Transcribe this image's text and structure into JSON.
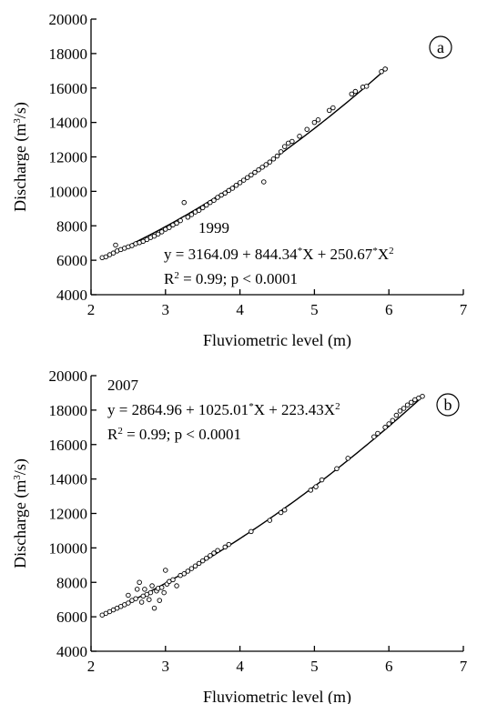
{
  "chart_data": [
    {
      "type": "scatter",
      "panel_label": "a",
      "xlabel": "Fluviometric level (m)",
      "ylabel_main": "Discharge (m",
      "ylabel_sup": "3",
      "ylabel_end": "/s)",
      "xlim": [
        2,
        7
      ],
      "ylim": [
        4000,
        20000
      ],
      "x_ticks": [
        2,
        3,
        4,
        5,
        6,
        7
      ],
      "y_ticks": [
        4000,
        6000,
        8000,
        10000,
        12000,
        14000,
        16000,
        18000,
        20000
      ],
      "year": "1999",
      "eq_main": "y = 3164.09 + 844.34",
      "eq_sup1": "*",
      "eq_mid": "X + 250.67",
      "eq_sup2": "*",
      "eq_end": "X",
      "eq_sup3": "2",
      "r2_main": "R",
      "r2_sup": "2",
      "r2_end": " = 0.99; p < 0.0001",
      "fit": {
        "intercept": 3164.09,
        "b1": 844.34,
        "b2": 250.67,
        "x_range": [
          2.15,
          5.98
        ]
      },
      "points": [
        [
          2.15,
          6150
        ],
        [
          2.2,
          6200
        ],
        [
          2.25,
          6320
        ],
        [
          2.3,
          6420
        ],
        [
          2.33,
          6880
        ],
        [
          2.35,
          6540
        ],
        [
          2.4,
          6620
        ],
        [
          2.45,
          6700
        ],
        [
          2.5,
          6780
        ],
        [
          2.55,
          6850
        ],
        [
          2.6,
          6960
        ],
        [
          2.65,
          7020
        ],
        [
          2.7,
          7100
        ],
        [
          2.75,
          7200
        ],
        [
          2.8,
          7320
        ],
        [
          2.85,
          7400
        ],
        [
          2.9,
          7520
        ],
        [
          2.95,
          7650
        ],
        [
          3.0,
          7800
        ],
        [
          3.05,
          7900
        ],
        [
          3.1,
          8050
        ],
        [
          3.15,
          8150
        ],
        [
          3.2,
          8300
        ],
        [
          3.25,
          9350
        ],
        [
          3.3,
          8500
        ],
        [
          3.35,
          8650
        ],
        [
          3.4,
          8800
        ],
        [
          3.45,
          8900
        ],
        [
          3.5,
          9050
        ],
        [
          3.55,
          9200
        ],
        [
          3.6,
          9350
        ],
        [
          3.65,
          9480
        ],
        [
          3.7,
          9650
        ],
        [
          3.75,
          9780
        ],
        [
          3.8,
          9900
        ],
        [
          3.85,
          10050
        ],
        [
          3.9,
          10180
        ],
        [
          3.95,
          10350
        ],
        [
          4.0,
          10500
        ],
        [
          4.05,
          10650
        ],
        [
          4.1,
          10800
        ],
        [
          4.15,
          10950
        ],
        [
          4.2,
          11100
        ],
        [
          4.25,
          11250
        ],
        [
          4.3,
          11400
        ],
        [
          4.32,
          10550
        ],
        [
          4.35,
          11550
        ],
        [
          4.4,
          11700
        ],
        [
          4.45,
          11880
        ],
        [
          4.5,
          12050
        ],
        [
          4.55,
          12300
        ],
        [
          4.6,
          12600
        ],
        [
          4.65,
          12800
        ],
        [
          4.7,
          12900
        ],
        [
          4.8,
          13200
        ],
        [
          4.9,
          13600
        ],
        [
          5.0,
          14000
        ],
        [
          5.05,
          14150
        ],
        [
          5.2,
          14700
        ],
        [
          5.25,
          14850
        ],
        [
          5.5,
          15650
        ],
        [
          5.55,
          15800
        ],
        [
          5.65,
          16050
        ],
        [
          5.7,
          16100
        ],
        [
          5.9,
          16950
        ],
        [
          5.95,
          17100
        ]
      ]
    },
    {
      "type": "scatter",
      "panel_label": "b",
      "xlabel": "Fluviometric level (m)",
      "ylabel_main": "Discharge (m",
      "ylabel_sup": "3",
      "ylabel_end": "/s)",
      "xlim": [
        2,
        7
      ],
      "ylim": [
        4000,
        20000
      ],
      "x_ticks": [
        2,
        3,
        4,
        5,
        6,
        7
      ],
      "y_ticks": [
        4000,
        6000,
        8000,
        10000,
        12000,
        14000,
        16000,
        18000,
        20000
      ],
      "year": "2007",
      "eq_main": "y = 2864.96 + 1025.01",
      "eq_sup1": "*",
      "eq_mid": "X + 223.43X",
      "eq_sup2": "",
      "eq_end": "",
      "eq_sup3": "2",
      "r2_main": "R",
      "r2_sup": "2",
      "r2_end": " = 0.99; p < 0.0001",
      "fit": {
        "intercept": 2864.96,
        "b1": 1025.01,
        "b2": 223.43,
        "x_range": [
          2.15,
          6.45
        ]
      },
      "points": [
        [
          2.15,
          6100
        ],
        [
          2.2,
          6200
        ],
        [
          2.25,
          6300
        ],
        [
          2.3,
          6400
        ],
        [
          2.35,
          6500
        ],
        [
          2.4,
          6600
        ],
        [
          2.45,
          6700
        ],
        [
          2.5,
          6800
        ],
        [
          2.5,
          7250
        ],
        [
          2.55,
          6950
        ],
        [
          2.6,
          7050
        ],
        [
          2.62,
          7600
        ],
        [
          2.65,
          8000
        ],
        [
          2.68,
          6850
        ],
        [
          2.7,
          7200
        ],
        [
          2.72,
          7600
        ],
        [
          2.75,
          7300
        ],
        [
          2.78,
          7000
        ],
        [
          2.8,
          7400
        ],
        [
          2.82,
          7800
        ],
        [
          2.85,
          6500
        ],
        [
          2.88,
          7500
        ],
        [
          2.9,
          7650
        ],
        [
          2.92,
          6950
        ],
        [
          2.95,
          7700
        ],
        [
          2.98,
          7400
        ],
        [
          3.0,
          8700
        ],
        [
          3.02,
          7900
        ],
        [
          3.05,
          8050
        ],
        [
          3.1,
          8150
        ],
        [
          3.15,
          7800
        ],
        [
          3.2,
          8400
        ],
        [
          3.25,
          8500
        ],
        [
          3.3,
          8650
        ],
        [
          3.35,
          8800
        ],
        [
          3.4,
          8950
        ],
        [
          3.45,
          9100
        ],
        [
          3.5,
          9250
        ],
        [
          3.55,
          9400
        ],
        [
          3.6,
          9550
        ],
        [
          3.65,
          9700
        ],
        [
          3.7,
          9850
        ],
        [
          3.8,
          10050
        ],
        [
          3.85,
          10200
        ],
        [
          4.15,
          10950
        ],
        [
          4.4,
          11600
        ],
        [
          4.55,
          12050
        ],
        [
          4.6,
          12200
        ],
        [
          4.95,
          13350
        ],
        [
          5.02,
          13550
        ],
        [
          5.1,
          13950
        ],
        [
          5.3,
          14600
        ],
        [
          5.45,
          15200
        ],
        [
          5.8,
          16450
        ],
        [
          5.85,
          16650
        ],
        [
          5.95,
          17000
        ],
        [
          6.0,
          17200
        ],
        [
          6.05,
          17400
        ],
        [
          6.1,
          17700
        ],
        [
          6.15,
          17950
        ],
        [
          6.2,
          18100
        ],
        [
          6.25,
          18300
        ],
        [
          6.3,
          18450
        ],
        [
          6.35,
          18600
        ],
        [
          6.4,
          18700
        ],
        [
          6.45,
          18800
        ]
      ]
    }
  ]
}
